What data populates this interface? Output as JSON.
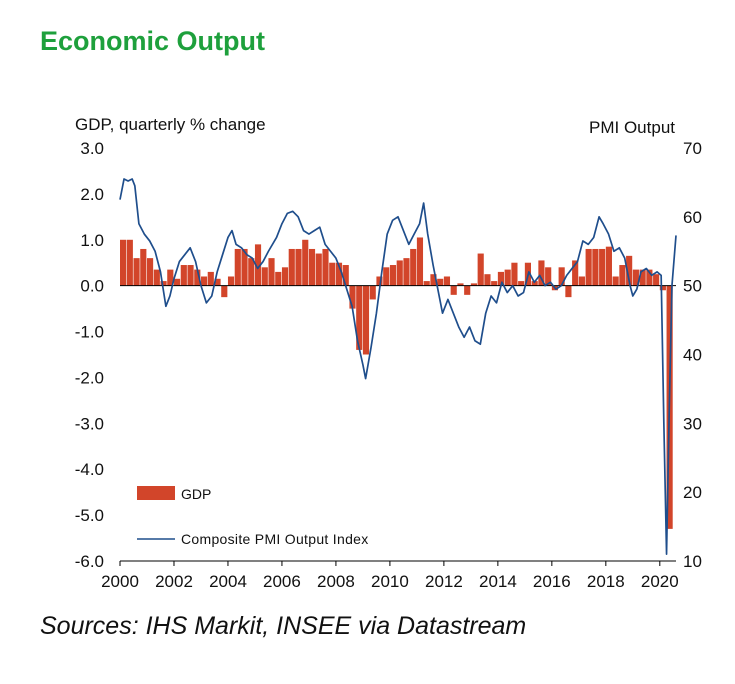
{
  "title": "Economic Output",
  "source": "Sources: IHS Markit, INSEE via Datastream",
  "colors": {
    "title": "#1ea03c",
    "gdp": "#d2452a",
    "pmi": "#1f4e8c",
    "axis": "#000000",
    "text": "#111111"
  },
  "chart_data": {
    "type": "bar+line",
    "left_axis_title": "GDP, quarterly % change",
    "right_axis_title": "PMI Output",
    "y_left_ticks": [
      "3.0",
      "2.0",
      "1.0",
      "0.0",
      "-1.0",
      "-2.0",
      "-3.0",
      "-4.0",
      "-5.0",
      "-6.0"
    ],
    "y_right_ticks": [
      "70",
      "60",
      "50",
      "40",
      "30",
      "20",
      "10"
    ],
    "x_ticks": [
      "2000",
      "2002",
      "2004",
      "2006",
      "2008",
      "2010",
      "2012",
      "2014",
      "2016",
      "2018",
      "2020"
    ],
    "xlim": [
      2000,
      2020.6
    ],
    "ylim_left": [
      -6,
      3
    ],
    "ylim_right": [
      10,
      70
    ],
    "legend": {
      "position": "bottom-left",
      "gdp_label": "GDP",
      "pmi_label": "Composite PMI Output Index"
    },
    "series": [
      {
        "name": "GDP",
        "kind": "bar",
        "axis": "left",
        "t_start": 2000.0,
        "step": 0.25,
        "values": [
          1.0,
          1.0,
          0.6,
          0.8,
          0.6,
          0.35,
          0.1,
          0.35,
          0.15,
          0.45,
          0.45,
          0.35,
          0.2,
          0.3,
          0.15,
          -0.25,
          0.2,
          0.8,
          0.8,
          0.6,
          0.9,
          0.4,
          0.6,
          0.3,
          0.4,
          0.8,
          0.8,
          1.0,
          0.8,
          0.7,
          0.8,
          0.5,
          0.5,
          0.45,
          -0.5,
          -1.4,
          -1.5,
          -0.3,
          0.2,
          0.4,
          0.45,
          0.55,
          0.6,
          0.8,
          1.05,
          0.1,
          0.25,
          0.15,
          0.2,
          -0.2,
          0.05,
          -0.2,
          0.05,
          0.7,
          0.25,
          0.1,
          0.3,
          0.35,
          0.5,
          0.1,
          0.5,
          0.1,
          0.55,
          0.4,
          -0.1,
          0.4,
          -0.25,
          0.55,
          0.2,
          0.8,
          0.8,
          0.8,
          0.85,
          0.2,
          0.45,
          0.65,
          0.35,
          0.35,
          0.35,
          0.25,
          -0.1,
          -5.3
        ]
      },
      {
        "name": "Composite PMI Output Index",
        "kind": "line",
        "axis": "right",
        "points": [
          [
            2000.0,
            62.5
          ],
          [
            2000.15,
            65.5
          ],
          [
            2000.3,
            65.2
          ],
          [
            2000.45,
            65.5
          ],
          [
            2000.55,
            64.5
          ],
          [
            2000.7,
            59.0
          ],
          [
            2000.9,
            57.5
          ],
          [
            2001.1,
            56.5
          ],
          [
            2001.3,
            55.0
          ],
          [
            2001.5,
            52.0
          ],
          [
            2001.7,
            47.0
          ],
          [
            2001.85,
            48.5
          ],
          [
            2002.0,
            51.0
          ],
          [
            2002.2,
            53.5
          ],
          [
            2002.4,
            54.5
          ],
          [
            2002.6,
            55.5
          ],
          [
            2002.8,
            53.5
          ],
          [
            2003.0,
            50.0
          ],
          [
            2003.2,
            47.5
          ],
          [
            2003.4,
            48.5
          ],
          [
            2003.6,
            52.0
          ],
          [
            2003.8,
            54.5
          ],
          [
            2004.0,
            57.0
          ],
          [
            2004.15,
            58.0
          ],
          [
            2004.3,
            56.0
          ],
          [
            2004.5,
            55.5
          ],
          [
            2004.7,
            54.5
          ],
          [
            2004.9,
            54.0
          ],
          [
            2005.1,
            52.5
          ],
          [
            2005.3,
            53.5
          ],
          [
            2005.5,
            55.0
          ],
          [
            2005.8,
            57.0
          ],
          [
            2006.0,
            59.0
          ],
          [
            2006.2,
            60.5
          ],
          [
            2006.4,
            60.8
          ],
          [
            2006.6,
            60.0
          ],
          [
            2006.8,
            58.0
          ],
          [
            2007.0,
            57.5
          ],
          [
            2007.2,
            58.0
          ],
          [
            2007.4,
            58.5
          ],
          [
            2007.6,
            56.0
          ],
          [
            2007.8,
            55.0
          ],
          [
            2008.0,
            54.0
          ],
          [
            2008.2,
            52.0
          ],
          [
            2008.4,
            49.5
          ],
          [
            2008.6,
            47.0
          ],
          [
            2008.8,
            42.0
          ],
          [
            2009.0,
            38.5
          ],
          [
            2009.1,
            36.5
          ],
          [
            2009.3,
            41.0
          ],
          [
            2009.5,
            46.0
          ],
          [
            2009.7,
            52.0
          ],
          [
            2009.9,
            57.5
          ],
          [
            2010.1,
            59.5
          ],
          [
            2010.3,
            60.0
          ],
          [
            2010.5,
            58.0
          ],
          [
            2010.7,
            56.0
          ],
          [
            2010.9,
            57.5
          ],
          [
            2011.1,
            59.0
          ],
          [
            2011.25,
            62.0
          ],
          [
            2011.4,
            57.5
          ],
          [
            2011.6,
            53.0
          ],
          [
            2011.8,
            49.0
          ],
          [
            2011.95,
            46.0
          ],
          [
            2012.15,
            48.0
          ],
          [
            2012.35,
            46.0
          ],
          [
            2012.55,
            44.0
          ],
          [
            2012.75,
            42.5
          ],
          [
            2012.95,
            44.0
          ],
          [
            2013.15,
            42.0
          ],
          [
            2013.35,
            41.5
          ],
          [
            2013.55,
            46.0
          ],
          [
            2013.75,
            48.5
          ],
          [
            2013.95,
            47.5
          ],
          [
            2014.15,
            50.5
          ],
          [
            2014.35,
            49.0
          ],
          [
            2014.55,
            50.0
          ],
          [
            2014.75,
            48.5
          ],
          [
            2014.95,
            49.0
          ],
          [
            2015.15,
            52.0
          ],
          [
            2015.35,
            50.5
          ],
          [
            2015.55,
            51.5
          ],
          [
            2015.75,
            50.0
          ],
          [
            2015.95,
            50.5
          ],
          [
            2016.15,
            49.5
          ],
          [
            2016.35,
            50.0
          ],
          [
            2016.55,
            51.5
          ],
          [
            2016.75,
            52.5
          ],
          [
            2016.95,
            53.5
          ],
          [
            2017.15,
            56.5
          ],
          [
            2017.35,
            56.0
          ],
          [
            2017.55,
            57.0
          ],
          [
            2017.75,
            60.0
          ],
          [
            2017.9,
            59.0
          ],
          [
            2018.1,
            57.5
          ],
          [
            2018.3,
            55.0
          ],
          [
            2018.5,
            55.5
          ],
          [
            2018.7,
            54.0
          ],
          [
            2018.9,
            50.0
          ],
          [
            2019.0,
            48.5
          ],
          [
            2019.15,
            49.5
          ],
          [
            2019.3,
            52.0
          ],
          [
            2019.5,
            52.5
          ],
          [
            2019.7,
            51.5
          ],
          [
            2019.9,
            52.0
          ],
          [
            2020.05,
            51.5
          ],
          [
            2020.15,
            30.0
          ],
          [
            2020.25,
            11.0
          ],
          [
            2020.35,
            32.0
          ],
          [
            2020.45,
            50.0
          ],
          [
            2020.6,
            57.3
          ]
        ]
      }
    ]
  }
}
